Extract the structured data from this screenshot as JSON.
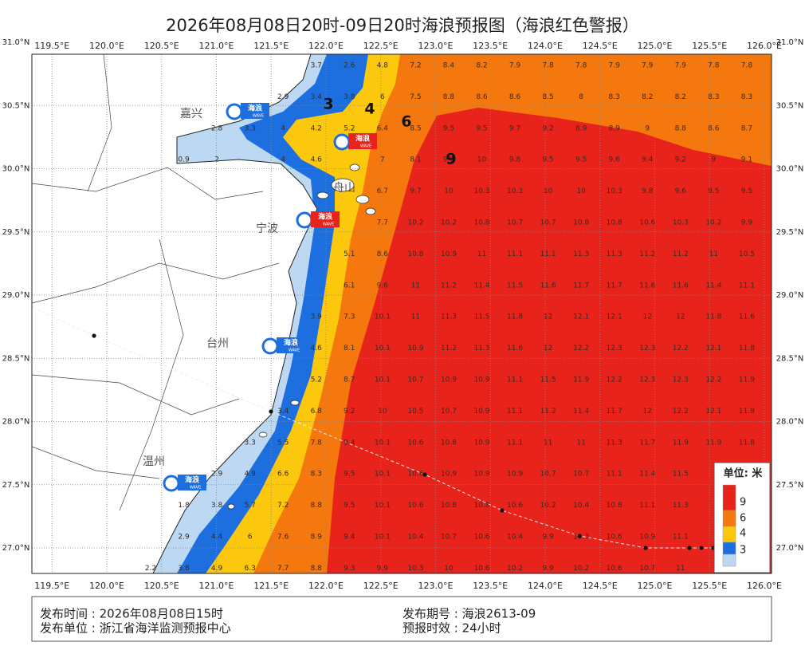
{
  "title": "2026年08月08日20时-09日20时海浪预报图（海浪红色警报）",
  "lon_ticks": [
    {
      "value": 119.5,
      "label": "119.5°E"
    },
    {
      "value": 120.0,
      "label": "120.0°E"
    },
    {
      "value": 120.5,
      "label": "120.5°E"
    },
    {
      "value": 121.0,
      "label": "121.0°E"
    },
    {
      "value": 121.5,
      "label": "121.5°E"
    },
    {
      "value": 122.0,
      "label": "122.0°E"
    },
    {
      "value": 122.5,
      "label": "122.5°E"
    },
    {
      "value": 123.0,
      "label": "123.0°E"
    },
    {
      "value": 123.5,
      "label": "123.5°E"
    },
    {
      "value": 124.0,
      "label": "124.0°E"
    },
    {
      "value": 124.5,
      "label": "124.5°E"
    },
    {
      "value": 125.0,
      "label": "125.0°E"
    },
    {
      "value": 125.5,
      "label": "125.5°E"
    },
    {
      "value": 126.0,
      "label": "126.0°E"
    }
  ],
  "lat_ticks": [
    {
      "value": 31.0,
      "label": "31.0°N"
    },
    {
      "value": 30.5,
      "label": "30.5°N"
    },
    {
      "value": 30.0,
      "label": "30.0°N"
    },
    {
      "value": 29.5,
      "label": "29.5°N"
    },
    {
      "value": 29.0,
      "label": "29.0°N"
    },
    {
      "value": 28.5,
      "label": "28.5°N"
    },
    {
      "value": 28.0,
      "label": "28.0°N"
    },
    {
      "value": 27.5,
      "label": "27.5°N"
    },
    {
      "value": 27.0,
      "label": "27.0°N"
    }
  ],
  "cities": [
    "嘉兴",
    "舟山",
    "宁波",
    "台州",
    "温州"
  ],
  "logo": {
    "name": "海浪",
    "sub": "WAVE"
  },
  "contour_labels": [
    3,
    4,
    6,
    9
  ],
  "wave_heights": [
    [
      null,
      null,
      null,
      null,
      null,
      3.7,
      2.6,
      4.8,
      7.2,
      8.4,
      8.2,
      7.9,
      7.8,
      7.8,
      7.9,
      7.9,
      7.9,
      7.8,
      7.8
    ],
    [
      null,
      null,
      null,
      null,
      2.9,
      3.4,
      3.8,
      6.0,
      7.5,
      8.8,
      8.6,
      8.6,
      8.5,
      8.0,
      8.3,
      8.2,
      8.2,
      8.3,
      8.3
    ],
    [
      null,
      null,
      2.8,
      3.3,
      4.0,
      4.2,
      5.2,
      6.4,
      8.5,
      9.5,
      9.5,
      9.7,
      9.2,
      8.9,
      8.9,
      9.0,
      8.8,
      8.6,
      8.7
    ],
    [
      null,
      0.9,
      2.0,
      null,
      4.0,
      4.6,
      null,
      7.0,
      8.1,
      9.9,
      10.0,
      9.8,
      9.5,
      9.5,
      9.6,
      9.4,
      9.2,
      9.0,
      9.1
    ],
    [
      null,
      null,
      null,
      null,
      null,
      null,
      null,
      6.7,
      9.7,
      10.0,
      10.3,
      10.3,
      10.0,
      10.0,
      10.3,
      9.8,
      9.6,
      9.5,
      9.5
    ],
    [
      null,
      null,
      null,
      null,
      null,
      null,
      null,
      7.7,
      10.2,
      10.2,
      10.8,
      10.7,
      10.7,
      10.8,
      10.8,
      10.6,
      10.3,
      10.2,
      9.9
    ],
    [
      null,
      null,
      null,
      null,
      null,
      null,
      5.1,
      8.6,
      10.8,
      10.9,
      11.0,
      11.1,
      11.1,
      11.3,
      11.3,
      11.2,
      11.2,
      11.0,
      10.5
    ],
    [
      null,
      null,
      null,
      null,
      null,
      null,
      6.1,
      9.6,
      11.0,
      11.2,
      11.4,
      11.5,
      11.6,
      11.7,
      11.7,
      11.6,
      11.6,
      11.4,
      11.1
    ],
    [
      null,
      null,
      null,
      null,
      null,
      3.9,
      7.3,
      10.1,
      11.0,
      11.3,
      11.5,
      11.8,
      12.0,
      12.1,
      12.1,
      12.0,
      12.0,
      11.8,
      11.6
    ],
    [
      null,
      null,
      null,
      null,
      null,
      4.6,
      8.1,
      10.1,
      10.9,
      11.2,
      11.3,
      11.6,
      12.0,
      12.2,
      12.3,
      12.3,
      12.2,
      12.1,
      11.8
    ],
    [
      null,
      null,
      null,
      null,
      null,
      5.2,
      8.7,
      10.1,
      10.7,
      10.9,
      10.9,
      11.1,
      11.5,
      11.9,
      12.2,
      12.3,
      12.3,
      12.2,
      11.9
    ],
    [
      null,
      null,
      null,
      null,
      3.4,
      6.8,
      9.2,
      10.0,
      10.5,
      10.7,
      10.9,
      11.1,
      11.2,
      11.4,
      11.7,
      12.0,
      12.2,
      12.1,
      11.9
    ],
    [
      null,
      null,
      null,
      3.3,
      5.5,
      7.8,
      9.4,
      10.1,
      10.6,
      10.8,
      10.9,
      11.1,
      11.0,
      11.0,
      11.3,
      11.7,
      11.9,
      11.9,
      11.8
    ],
    [
      null,
      null,
      2.9,
      4.9,
      6.6,
      8.3,
      9.5,
      10.1,
      10.6,
      10.9,
      10.9,
      10.9,
      10.7,
      10.7,
      11.1,
      11.4,
      11.5,
      null,
      null
    ],
    [
      null,
      1.8,
      3.8,
      5.7,
      7.2,
      8.8,
      9.5,
      10.1,
      10.6,
      10.8,
      10.8,
      10.6,
      10.2,
      10.4,
      10.8,
      11.1,
      11.3,
      null,
      null
    ],
    [
      null,
      2.9,
      4.4,
      6.0,
      7.6,
      8.9,
      9.4,
      10.1,
      10.4,
      10.7,
      10.6,
      10.4,
      9.9,
      10.3,
      10.6,
      10.9,
      11.1,
      null,
      null
    ],
    [
      2.2,
      3.8,
      4.9,
      6.3,
      7.7,
      8.8,
      9.3,
      9.9,
      10.3,
      10.0,
      10.6,
      10.2,
      9.9,
      10.2,
      10.6,
      10.7,
      11.0,
      null,
      null
    ]
  ],
  "legend": {
    "title": "单位: 米",
    "levels": [
      9,
      6,
      4,
      3
    ],
    "colors": [
      "#e8231c",
      "#f5780f",
      "#fcc80e",
      "#1d6fe0",
      "#bcd8f2"
    ]
  },
  "footer": [
    "发布时间 : 2026年08月08日15时",
    "发布单位 : 浙江省海洋监测预报中心",
    "发布期号 : 海浪2613-09",
    "预报时效 : 24小时"
  ]
}
